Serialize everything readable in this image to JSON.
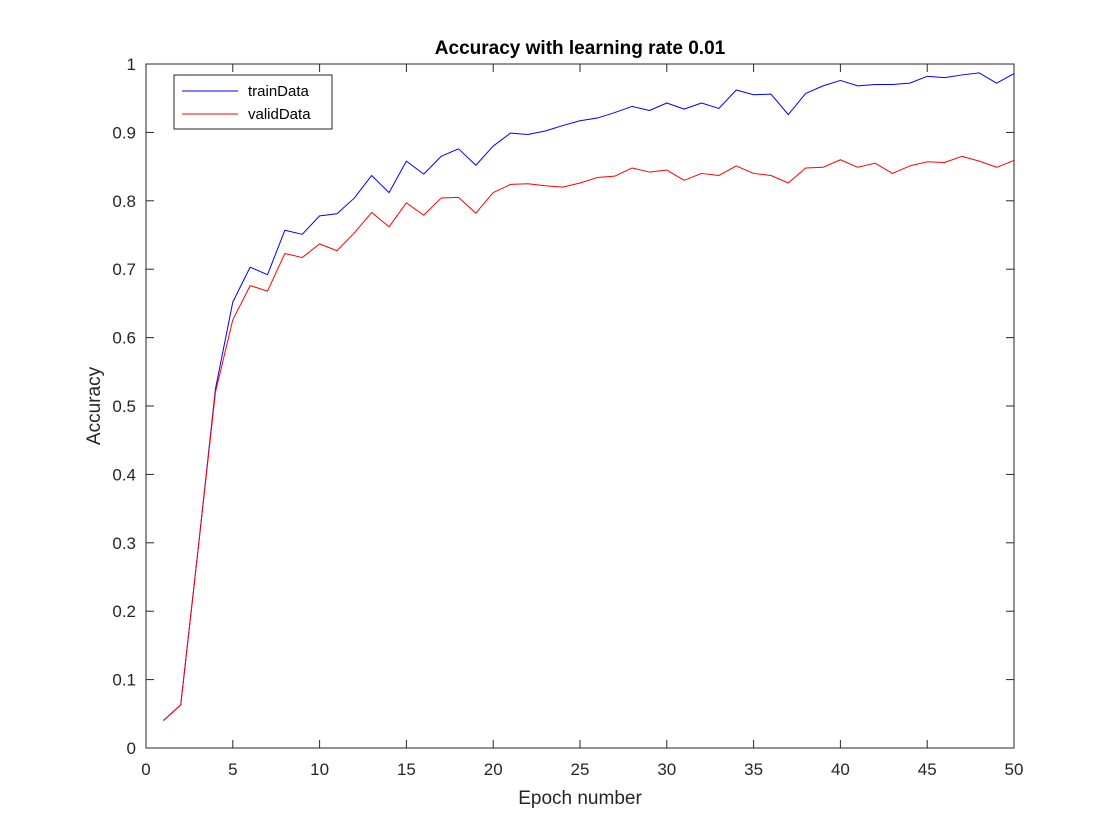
{
  "chart_data": {
    "type": "line",
    "title": "Accuracy with learning rate 0.01",
    "xlabel": "Epoch number",
    "ylabel": "Accuracy",
    "xlim": [
      0,
      50
    ],
    "ylim": [
      0,
      1
    ],
    "xticks": [
      0,
      5,
      10,
      15,
      20,
      25,
      30,
      35,
      40,
      45,
      50
    ],
    "yticks": [
      0,
      0.1,
      0.2,
      0.3,
      0.4,
      0.5,
      0.6,
      0.7,
      0.8,
      0.9,
      1
    ],
    "grid": false,
    "legend_position": "top-left",
    "x": [
      1,
      2,
      3,
      4,
      5,
      6,
      7,
      8,
      9,
      10,
      11,
      12,
      13,
      14,
      15,
      16,
      17,
      18,
      19,
      20,
      21,
      22,
      23,
      24,
      25,
      26,
      27,
      28,
      29,
      30,
      31,
      32,
      33,
      34,
      35,
      36,
      37,
      38,
      39,
      40,
      41,
      42,
      43,
      44,
      45,
      46,
      47,
      48,
      49,
      50
    ],
    "series": [
      {
        "name": "trainData",
        "color": "#0000ff",
        "values": [
          0.04,
          0.063,
          0.29,
          0.525,
          0.652,
          0.703,
          0.692,
          0.757,
          0.751,
          0.778,
          0.781,
          0.804,
          0.837,
          0.812,
          0.858,
          0.839,
          0.865,
          0.876,
          0.852,
          0.88,
          0.899,
          0.897,
          0.902,
          0.91,
          0.917,
          0.921,
          0.929,
          0.938,
          0.932,
          0.943,
          0.934,
          0.943,
          0.935,
          0.962,
          0.955,
          0.956,
          0.926,
          0.957,
          0.968,
          0.976,
          0.968,
          0.97,
          0.97,
          0.972,
          0.982,
          0.98,
          0.984,
          0.987,
          0.972,
          0.986
        ]
      },
      {
        "name": "validData",
        "color": "#ff0000",
        "values": [
          0.04,
          0.063,
          0.29,
          0.52,
          0.626,
          0.676,
          0.668,
          0.723,
          0.717,
          0.737,
          0.727,
          0.753,
          0.783,
          0.762,
          0.797,
          0.779,
          0.804,
          0.805,
          0.782,
          0.812,
          0.824,
          0.825,
          0.822,
          0.82,
          0.826,
          0.834,
          0.836,
          0.848,
          0.842,
          0.845,
          0.83,
          0.84,
          0.837,
          0.851,
          0.84,
          0.837,
          0.826,
          0.848,
          0.849,
          0.86,
          0.849,
          0.855,
          0.84,
          0.851,
          0.857,
          0.856,
          0.865,
          0.858,
          0.849,
          0.859
        ]
      }
    ]
  }
}
